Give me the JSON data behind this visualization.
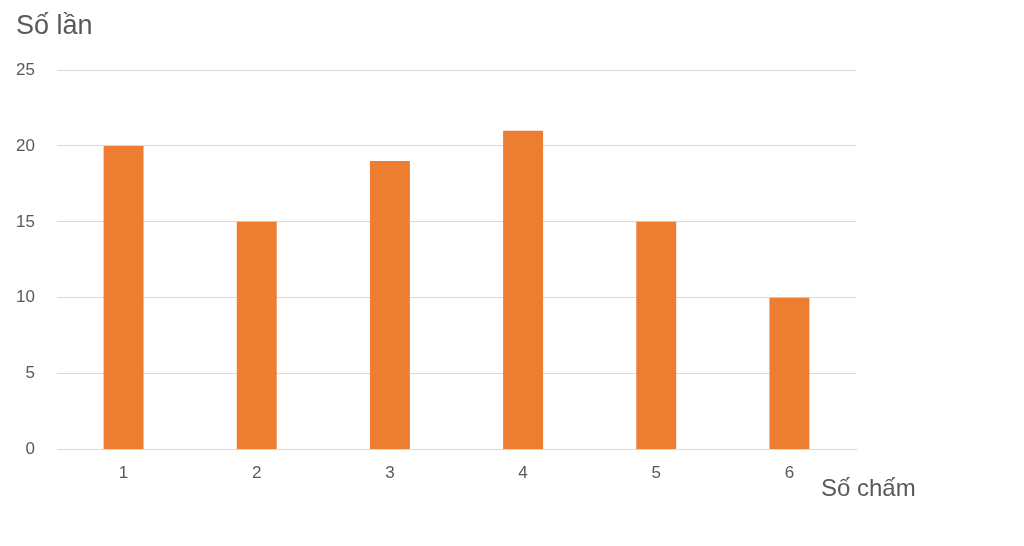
{
  "chart_data": {
    "type": "bar",
    "xlabel": "Số chấm",
    "ylabel": "Số lần",
    "categories": [
      "1",
      "2",
      "3",
      "4",
      "5",
      "6"
    ],
    "values": [
      20,
      15,
      19,
      21,
      15,
      10
    ],
    "color": "#ed7d31",
    "ylim": [
      0,
      25
    ],
    "yticks": [
      0,
      5,
      10,
      15,
      20,
      25
    ],
    "grid": "y",
    "legend": false
  }
}
